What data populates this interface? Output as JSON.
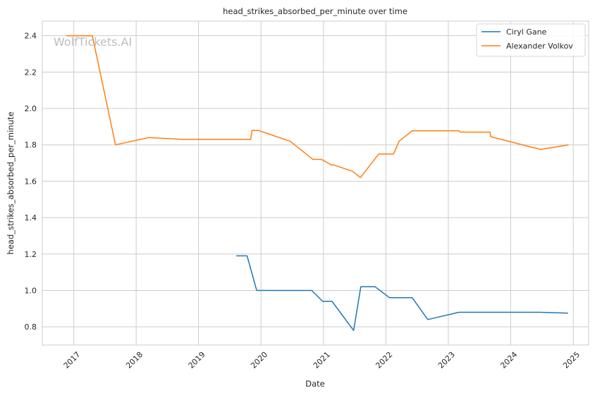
{
  "chart_data": {
    "type": "line",
    "title": "head_strikes_absorbed_per_minute over time",
    "xlabel": "Date",
    "ylabel": "head_strikes_absorbed_per_minute",
    "watermark": "WolfTickets.AI",
    "xlim": [
      "2016-07-01",
      "2025-04-01"
    ],
    "ylim": [
      0.7,
      2.48
    ],
    "x_ticks": [
      "2017",
      "2018",
      "2019",
      "2020",
      "2021",
      "2022",
      "2023",
      "2024",
      "2025"
    ],
    "y_ticks": [
      "0.8",
      "1.0",
      "1.2",
      "1.4",
      "1.6",
      "1.8",
      "2.0",
      "2.2",
      "2.4"
    ],
    "grid": true,
    "legend_position": "top-right",
    "series": [
      {
        "name": "Ciryl Gane",
        "color": "#1f77b4",
        "points": [
          [
            "2019-08-10",
            1.19
          ],
          [
            "2019-10-12",
            1.19
          ],
          [
            "2019-12-07",
            1.0
          ],
          [
            "2020-06-27",
            1.0
          ],
          [
            "2020-10-24",
            1.0
          ],
          [
            "2020-12-27",
            0.94
          ],
          [
            "2021-02-20",
            0.94
          ],
          [
            "2021-06-26",
            0.78
          ],
          [
            "2021-08-07",
            1.02
          ],
          [
            "2021-10-30",
            1.02
          ],
          [
            "2022-01-22",
            0.96
          ],
          [
            "2022-06-04",
            0.96
          ],
          [
            "2022-09-03",
            0.84
          ],
          [
            "2023-03-04",
            0.88
          ],
          [
            "2023-09-02",
            0.88
          ],
          [
            "2024-06-20",
            0.88
          ],
          [
            "2024-12-01",
            0.875
          ]
        ]
      },
      {
        "name": "Alexander Volkov",
        "color": "#ff7f0e",
        "points": [
          [
            "2016-11-19",
            2.4
          ],
          [
            "2017-04-20",
            2.4
          ],
          [
            "2017-09-02",
            1.8
          ],
          [
            "2018-03-17",
            1.84
          ],
          [
            "2018-10-06",
            1.83
          ],
          [
            "2019-11-02",
            1.83
          ],
          [
            "2019-11-10",
            1.88
          ],
          [
            "2019-12-15",
            1.88
          ],
          [
            "2020-06-20",
            1.82
          ],
          [
            "2020-10-31",
            1.72
          ],
          [
            "2020-12-20",
            1.72
          ],
          [
            "2021-02-15",
            1.69
          ],
          [
            "2021-02-28",
            1.69
          ],
          [
            "2021-06-19",
            1.655
          ],
          [
            "2021-08-05",
            1.62
          ],
          [
            "2021-11-20",
            1.75
          ],
          [
            "2022-02-15",
            1.75
          ],
          [
            "2022-03-19",
            1.82
          ],
          [
            "2022-06-04",
            1.877
          ],
          [
            "2023-03-04",
            1.877
          ],
          [
            "2023-03-12",
            1.87
          ],
          [
            "2023-09-02",
            1.87
          ],
          [
            "2023-09-06",
            1.845
          ],
          [
            "2024-06-22",
            1.775
          ],
          [
            "2024-12-05",
            1.8
          ]
        ]
      }
    ]
  }
}
